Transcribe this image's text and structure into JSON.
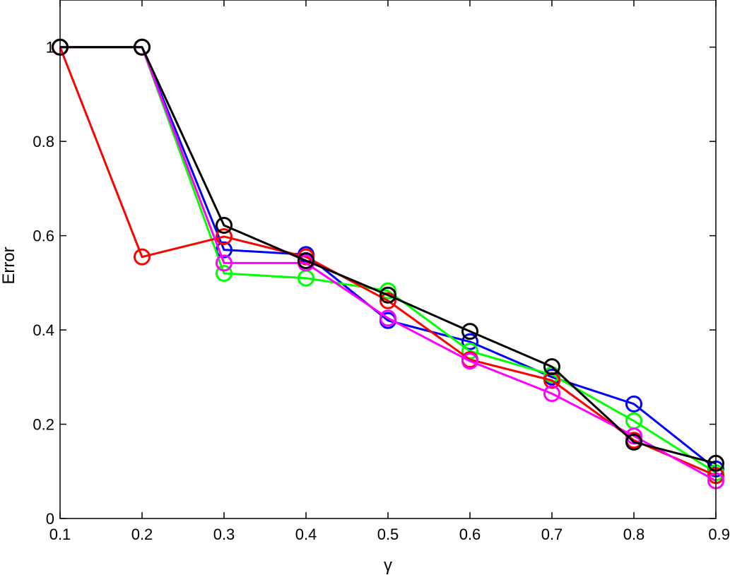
{
  "chart_data": {
    "type": "line",
    "title": "",
    "xlabel": "γ",
    "ylabel": "Error",
    "xlim": [
      0.1,
      0.9
    ],
    "ylim": [
      0,
      1.1
    ],
    "grid": false,
    "legend": "none",
    "x": [
      0.1,
      0.2,
      0.3,
      0.4,
      0.5,
      0.6,
      0.7,
      0.8,
      0.9
    ],
    "xticks": [
      "0.1",
      "0.2",
      "0.3",
      "0.4",
      "0.5",
      "0.6",
      "0.7",
      "0.8",
      "0.9"
    ],
    "yticks": [
      "0",
      "0.2",
      "0.4",
      "0.6",
      "0.8",
      "1"
    ],
    "series": [
      {
        "color": "#0000ff",
        "values": [
          1.0,
          1.0,
          0.57,
          0.56,
          0.42,
          0.375,
          0.3,
          0.243,
          0.105
        ]
      },
      {
        "color": "#00ff00",
        "values": [
          1.0,
          1.0,
          0.52,
          0.51,
          0.483,
          0.355,
          0.305,
          0.207,
          0.097
        ]
      },
      {
        "color": "#ff0000",
        "values": [
          1.0,
          0.555,
          0.598,
          0.555,
          0.462,
          0.337,
          0.293,
          0.166,
          0.091
        ]
      },
      {
        "color": "#ff00ff",
        "values": [
          1.0,
          1.0,
          0.542,
          0.542,
          0.425,
          0.334,
          0.265,
          0.175,
          0.08
        ]
      },
      {
        "color": "#000000",
        "values": [
          1.0,
          1.0,
          0.622,
          0.547,
          0.474,
          0.397,
          0.322,
          0.162,
          0.117
        ]
      }
    ]
  }
}
